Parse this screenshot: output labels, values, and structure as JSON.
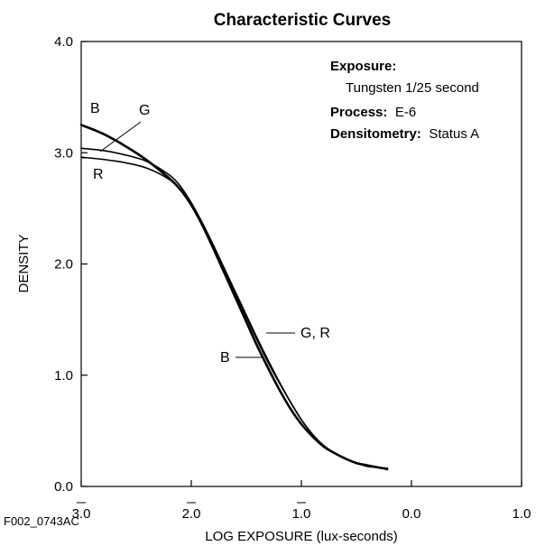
{
  "chart_data": {
    "type": "line",
    "title": "Characteristic Curves",
    "xlabel": "LOG EXPOSURE (lux-seconds)",
    "ylabel": "DENSITY",
    "xlim": [
      -3.0,
      1.0
    ],
    "ylim": [
      0.0,
      4.0
    ],
    "x_ticks": [
      "3.0",
      "2.0",
      "1.0",
      "0.0",
      "1.0"
    ],
    "x_tick_bars": [
      true,
      true,
      true,
      false,
      false
    ],
    "y_ticks": [
      "0.0",
      "1.0",
      "2.0",
      "3.0",
      "4.0"
    ],
    "grid": false,
    "series": [
      {
        "name": "B",
        "color": "#000000",
        "x": [
          -3.0,
          -2.8,
          -2.6,
          -2.4,
          -2.2,
          -2.1,
          -2.0,
          -1.9,
          -1.8,
          -1.7,
          -1.6,
          -1.5,
          -1.4,
          -1.3,
          -1.2,
          -1.1,
          -1.0,
          -0.9,
          -0.8,
          -0.7,
          -0.6,
          -0.5,
          -0.4,
          -0.3,
          -0.22
        ],
        "y": [
          3.25,
          3.17,
          3.06,
          2.93,
          2.77,
          2.67,
          2.53,
          2.35,
          2.14,
          1.92,
          1.7,
          1.48,
          1.26,
          1.06,
          0.87,
          0.7,
          0.56,
          0.45,
          0.36,
          0.3,
          0.25,
          0.21,
          0.19,
          0.17,
          0.16
        ]
      },
      {
        "name": "G",
        "color": "#000000",
        "x": [
          -3.0,
          -2.8,
          -2.6,
          -2.4,
          -2.2,
          -2.1,
          -2.0,
          -1.9,
          -1.8,
          -1.7,
          -1.6,
          -1.5,
          -1.4,
          -1.3,
          -1.2,
          -1.1,
          -1.0,
          -0.9,
          -0.8,
          -0.7,
          -0.6,
          -0.5,
          -0.4,
          -0.3,
          -0.22
        ],
        "y": [
          3.04,
          3.02,
          2.98,
          2.92,
          2.8,
          2.7,
          2.55,
          2.37,
          2.17,
          1.96,
          1.75,
          1.54,
          1.33,
          1.13,
          0.94,
          0.76,
          0.6,
          0.47,
          0.37,
          0.3,
          0.25,
          0.21,
          0.19,
          0.17,
          0.16
        ]
      },
      {
        "name": "R",
        "color": "#000000",
        "x": [
          -3.0,
          -2.8,
          -2.6,
          -2.4,
          -2.2,
          -2.1,
          -2.0,
          -1.9,
          -1.8,
          -1.7,
          -1.6,
          -1.5,
          -1.4,
          -1.3,
          -1.2,
          -1.1,
          -1.0,
          -0.9,
          -0.8,
          -0.7,
          -0.6,
          -0.5,
          -0.4,
          -0.3,
          -0.22
        ],
        "y": [
          2.96,
          2.94,
          2.91,
          2.86,
          2.76,
          2.67,
          2.53,
          2.35,
          2.15,
          1.94,
          1.73,
          1.52,
          1.31,
          1.11,
          0.93,
          0.76,
          0.6,
          0.47,
          0.37,
          0.3,
          0.25,
          0.21,
          0.18,
          0.17,
          0.15
        ]
      }
    ],
    "curve_labels": {
      "B_top": "B",
      "G_top": "G",
      "R_top": "R",
      "GR_mid": "G, R",
      "B_mid": "B"
    },
    "annotations": {
      "exposure_label": "Exposure:",
      "exposure_value": "Tungsten 1/25 second",
      "process_label": "Process:",
      "process_value": "E-6",
      "densitometry_label": "Densitometry:",
      "densitometry_value": "Status A"
    },
    "figure_id": "F002_0743AC"
  }
}
